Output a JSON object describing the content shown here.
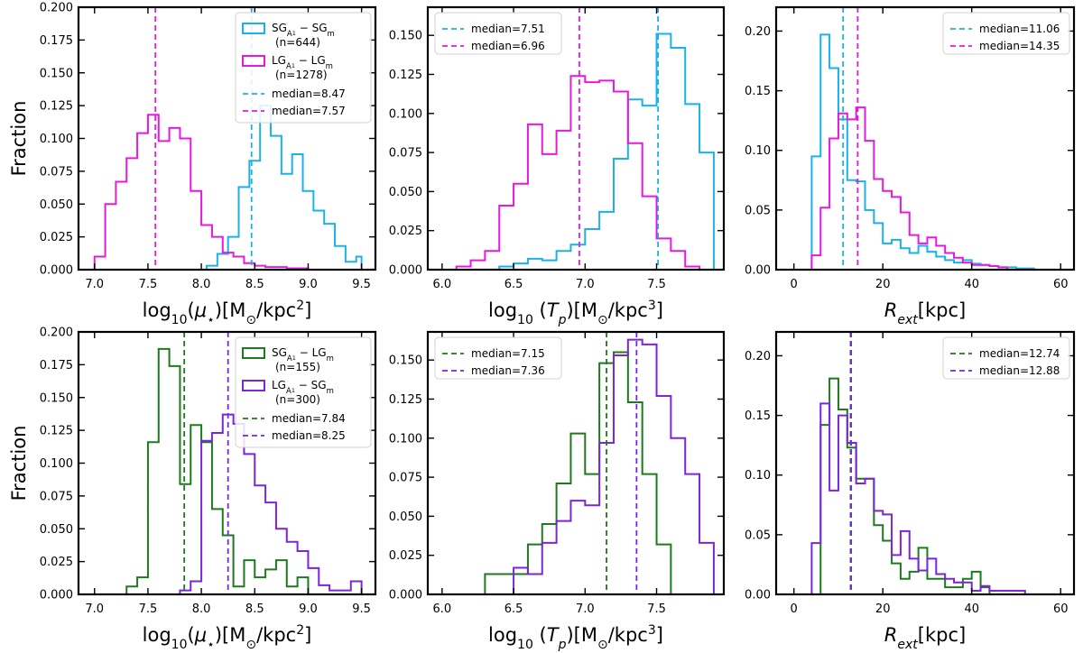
{
  "figure": {
    "ylabel_text": "Fraction",
    "xlabels": {
      "mu": {
        "base": "log",
        "sub": "10",
        "open": "(",
        "sym": "μ",
        "symsub": "⋆",
        "close": ")",
        "unit_open": "[M",
        "sun": "⊙",
        "unit_mid": "/kpc",
        "pow": "2",
        "unit_close": "]"
      },
      "tp": {
        "base": "log",
        "sub": "10",
        "mid": " (",
        "sym": "T",
        "symsub": "p",
        "close": ")",
        "unit_open": "[M",
        "sun": "⊙",
        "unit_mid": "/kpc",
        "pow": "3",
        "unit_close": "]"
      },
      "rext": {
        "sym": "R",
        "symsub": "ext",
        "unit": "[kpc]"
      }
    }
  },
  "colors": {
    "SG_SG": "#1ab2e8",
    "LG_LG": "#e619e0",
    "SG_LG": "#1e7a1e",
    "LG_SG": "#7a26d9"
  },
  "chart_data": [
    {
      "type": "histogram",
      "id": "top-mu",
      "xlabel": "mu",
      "xlim": [
        6.85,
        9.63
      ],
      "ylim": [
        0,
        0.2
      ],
      "xticks": [
        7.0,
        7.5,
        8.0,
        8.5,
        9.0,
        9.5
      ],
      "xtick_labels": [
        "7.0",
        "7.5",
        "8.0",
        "8.5",
        "9.0",
        "9.5"
      ],
      "yticks": [
        0,
        0.025,
        0.05,
        0.075,
        0.1,
        0.125,
        0.15,
        0.175,
        0.2
      ],
      "ytick_labels": [
        "0.000",
        "0.025",
        "0.050",
        "0.075",
        "0.100",
        "0.125",
        "0.150",
        "0.175",
        "0.200"
      ],
      "show_ylabel": true,
      "legend_loc": "upper right",
      "series": [
        {
          "key": "SG_SG",
          "legend_main": "SG",
          "legend_s1": "A",
          "legend_s1b": "1",
          "legend_dash": " − SG",
          "legend_s2": "m",
          "legend_n": "(n=644)",
          "edges": [
            8.05,
            8.15,
            8.25,
            8.35,
            8.45,
            8.55,
            8.65,
            8.75,
            8.85,
            8.95,
            9.05,
            9.15,
            9.25,
            9.35,
            9.45,
            9.5
          ],
          "values": [
            0.003,
            0.012,
            0.025,
            0.063,
            0.083,
            0.125,
            0.102,
            0.073,
            0.088,
            0.06,
            0.045,
            0.035,
            0.018,
            0.006,
            0.01
          ]
        },
        {
          "key": "LG_LG",
          "legend_main": "LG",
          "legend_s1": "A",
          "legend_s1b": "1",
          "legend_dash": " − LG",
          "legend_s2": "m",
          "legend_n": "(n=1278)",
          "edges": [
            7.0,
            7.1,
            7.2,
            7.3,
            7.4,
            7.5,
            7.6,
            7.7,
            7.8,
            7.9,
            8.0,
            8.1,
            8.2,
            8.3,
            8.4,
            8.5,
            8.6,
            8.7,
            8.8,
            8.9,
            9.0
          ],
          "values": [
            0.01,
            0.05,
            0.067,
            0.085,
            0.104,
            0.118,
            0.098,
            0.108,
            0.1,
            0.06,
            0.034,
            0.025,
            0.013,
            0.01,
            0.005,
            0.003,
            0.002,
            0.002,
            0.001,
            0.001
          ]
        }
      ],
      "medians": [
        {
          "key": "SG_SG",
          "value": 8.47,
          "label": "median=8.47"
        },
        {
          "key": "LG_LG",
          "value": 7.57,
          "label": "median=7.57"
        }
      ]
    },
    {
      "type": "histogram",
      "id": "top-tp",
      "xlabel": "tp",
      "xlim": [
        5.9,
        7.97
      ],
      "ylim": [
        0,
        0.168
      ],
      "xticks": [
        6.0,
        6.5,
        7.0,
        7.5
      ],
      "xtick_labels": [
        "6.0",
        "6.5",
        "7.0",
        "7.5"
      ],
      "yticks": [
        0,
        0.025,
        0.05,
        0.075,
        0.1,
        0.125,
        0.15
      ],
      "ytick_labels": [
        "0.000",
        "0.025",
        "0.050",
        "0.075",
        "0.100",
        "0.125",
        "0.150"
      ],
      "show_ylabel": false,
      "legend_loc": "upper left",
      "series": [
        {
          "key": "SG_SG",
          "edges": [
            6.4,
            6.5,
            6.6,
            6.7,
            6.8,
            6.9,
            7.0,
            7.1,
            7.2,
            7.3,
            7.4,
            7.5,
            7.6,
            7.7,
            7.8,
            7.9
          ],
          "values": [
            0.002,
            0.004,
            0.007,
            0.006,
            0.012,
            0.016,
            0.026,
            0.037,
            0.071,
            0.109,
            0.105,
            0.151,
            0.142,
            0.106,
            0.075
          ]
        },
        {
          "key": "LG_LG",
          "edges": [
            6.1,
            6.2,
            6.3,
            6.4,
            6.5,
            6.6,
            6.7,
            6.8,
            6.9,
            7.0,
            7.1,
            7.2,
            7.3,
            7.4,
            7.5,
            7.6,
            7.7,
            7.8
          ],
          "values": [
            0.002,
            0.006,
            0.012,
            0.041,
            0.055,
            0.093,
            0.074,
            0.089,
            0.124,
            0.12,
            0.121,
            0.114,
            0.081,
            0.047,
            0.02,
            0.012,
            0.002
          ]
        }
      ],
      "medians": [
        {
          "key": "SG_SG",
          "value": 7.51,
          "label": "median=7.51"
        },
        {
          "key": "LG_LG",
          "value": 6.96,
          "label": "median=6.96"
        }
      ]
    },
    {
      "type": "histogram",
      "id": "top-rext",
      "xlabel": "rext",
      "xlim": [
        -4,
        63
      ],
      "ylim": [
        0,
        0.22
      ],
      "xticks": [
        0,
        20,
        40,
        60
      ],
      "xtick_labels": [
        "0",
        "20",
        "40",
        "60"
      ],
      "yticks": [
        0,
        0.05,
        0.1,
        0.15,
        0.2
      ],
      "ytick_labels": [
        "0.00",
        "0.05",
        "0.10",
        "0.15",
        "0.20"
      ],
      "show_ylabel": false,
      "legend_loc": "upper right",
      "series": [
        {
          "key": "SG_SG",
          "edges": [
            4,
            6,
            8,
            10,
            12,
            14,
            16,
            18,
            20,
            22,
            24,
            26,
            28,
            30,
            32,
            34,
            36,
            38,
            40,
            42,
            44,
            46,
            48,
            50,
            54
          ],
          "values": [
            0.095,
            0.197,
            0.169,
            0.126,
            0.075,
            0.074,
            0.05,
            0.039,
            0.022,
            0.025,
            0.018,
            0.014,
            0.02,
            0.015,
            0.011,
            0.008,
            0.006,
            0.008,
            0.005,
            0.004,
            0.003,
            0.002,
            0.002,
            0.001
          ]
        },
        {
          "key": "LG_LG",
          "edges": [
            4,
            6,
            8,
            10,
            12,
            14,
            16,
            18,
            20,
            22,
            24,
            26,
            28,
            30,
            32,
            34,
            36,
            38,
            40,
            42,
            44,
            46,
            48
          ],
          "values": [
            0.012,
            0.052,
            0.11,
            0.131,
            0.126,
            0.136,
            0.108,
            0.076,
            0.066,
            0.061,
            0.048,
            0.029,
            0.022,
            0.027,
            0.02,
            0.014,
            0.01,
            0.006,
            0.004,
            0.004,
            0.003,
            0.002
          ]
        }
      ],
      "medians": [
        {
          "key": "SG_SG",
          "value": 11.06,
          "label": "median=11.06"
        },
        {
          "key": "LG_LG",
          "value": 14.35,
          "label": "median=14.35"
        }
      ]
    },
    {
      "type": "histogram",
      "id": "bottom-mu",
      "xlabel": "mu",
      "xlim": [
        6.85,
        9.63
      ],
      "ylim": [
        0,
        0.2
      ],
      "xticks": [
        7.0,
        7.5,
        8.0,
        8.5,
        9.0,
        9.5
      ],
      "xtick_labels": [
        "7.0",
        "7.5",
        "8.0",
        "8.5",
        "9.0",
        "9.5"
      ],
      "yticks": [
        0,
        0.025,
        0.05,
        0.075,
        0.1,
        0.125,
        0.15,
        0.175,
        0.2
      ],
      "ytick_labels": [
        "0.000",
        "0.025",
        "0.050",
        "0.075",
        "0.100",
        "0.125",
        "0.150",
        "0.175",
        "0.200"
      ],
      "show_ylabel": true,
      "legend_loc": "upper right",
      "series": [
        {
          "key": "SG_LG",
          "legend_main": "SG",
          "legend_s1": "A",
          "legend_s1b": "1",
          "legend_dash": " − LG",
          "legend_s2": "m",
          "legend_n": "(n=155)",
          "edges": [
            7.3,
            7.4,
            7.5,
            7.6,
            7.7,
            7.8,
            7.9,
            8.0,
            8.1,
            8.2,
            8.3,
            8.4,
            8.5,
            8.6,
            8.7,
            8.8,
            8.9,
            9.0
          ],
          "values": [
            0.006,
            0.013,
            0.116,
            0.187,
            0.174,
            0.084,
            0.129,
            0.116,
            0.065,
            0.045,
            0.006,
            0.026,
            0.013,
            0.019,
            0.026,
            0.006,
            0.013
          ]
        },
        {
          "key": "LG_SG",
          "legend_main": "LG",
          "legend_s1": "A",
          "legend_s1b": "1",
          "legend_dash": " − SG",
          "legend_s2": "m",
          "legend_n": "(n=300)",
          "edges": [
            7.8,
            7.9,
            8.0,
            8.1,
            8.2,
            8.3,
            8.4,
            8.5,
            8.6,
            8.7,
            8.8,
            8.9,
            9.0,
            9.1,
            9.2,
            9.3,
            9.4,
            9.5
          ],
          "values": [
            0.003,
            0.01,
            0.117,
            0.123,
            0.137,
            0.13,
            0.107,
            0.083,
            0.07,
            0.05,
            0.04,
            0.033,
            0.02,
            0.007,
            0.003,
            0.003,
            0.01
          ]
        }
      ],
      "medians": [
        {
          "key": "SG_LG",
          "value": 7.84,
          "label": "median=7.84"
        },
        {
          "key": "LG_SG",
          "value": 8.25,
          "label": "median=8.25"
        }
      ]
    },
    {
      "type": "histogram",
      "id": "bottom-tp",
      "xlabel": "tp",
      "xlim": [
        5.9,
        7.97
      ],
      "ylim": [
        0,
        0.168
      ],
      "xticks": [
        6.0,
        6.5,
        7.0,
        7.5
      ],
      "xtick_labels": [
        "6.0",
        "6.5",
        "7.0",
        "7.5"
      ],
      "yticks": [
        0,
        0.025,
        0.05,
        0.075,
        0.1,
        0.125,
        0.15
      ],
      "ytick_labels": [
        "0.000",
        "0.025",
        "0.050",
        "0.075",
        "0.100",
        "0.125",
        "0.150"
      ],
      "show_ylabel": false,
      "legend_loc": "upper left",
      "series": [
        {
          "key": "SG_LG",
          "edges": [
            6.3,
            6.4,
            6.5,
            6.6,
            6.7,
            6.8,
            6.9,
            7.0,
            7.1,
            7.2,
            7.3,
            7.4,
            7.5,
            7.6
          ],
          "values": [
            0.013,
            0.013,
            0.013,
            0.032,
            0.045,
            0.071,
            0.103,
            0.077,
            0.148,
            0.155,
            0.123,
            0.077,
            0.032
          ]
        },
        {
          "key": "LG_SG",
          "edges": [
            6.5,
            6.6,
            6.7,
            6.8,
            6.9,
            7.0,
            7.1,
            7.2,
            7.3,
            7.4,
            7.5,
            7.6,
            7.7,
            7.8,
            7.9
          ],
          "values": [
            0.017,
            0.013,
            0.033,
            0.047,
            0.06,
            0.057,
            0.097,
            0.153,
            0.163,
            0.16,
            0.127,
            0.1,
            0.077,
            0.033
          ]
        }
      ],
      "medians": [
        {
          "key": "SG_LG",
          "value": 7.15,
          "label": "median=7.15"
        },
        {
          "key": "LG_SG",
          "value": 7.36,
          "label": "median=7.36"
        }
      ]
    },
    {
      "type": "histogram",
      "id": "bottom-rext",
      "xlabel": "rext",
      "xlim": [
        -4,
        63
      ],
      "ylim": [
        0,
        0.22
      ],
      "xticks": [
        0,
        20,
        40,
        60
      ],
      "xtick_labels": [
        "0",
        "20",
        "40",
        "60"
      ],
      "yticks": [
        0,
        0.05,
        0.1,
        0.15,
        0.2
      ],
      "ytick_labels": [
        "0.00",
        "0.05",
        "0.10",
        "0.15",
        "0.20"
      ],
      "show_ylabel": false,
      "legend_loc": "upper right",
      "series": [
        {
          "key": "SG_LG",
          "edges": [
            6,
            8,
            10,
            12,
            14,
            16,
            18,
            20,
            22,
            24,
            26,
            28,
            30,
            32,
            34,
            36,
            38,
            40,
            42,
            44
          ],
          "values": [
            0.142,
            0.181,
            0.155,
            0.123,
            0.097,
            0.097,
            0.058,
            0.045,
            0.026,
            0.013,
            0.019,
            0.039,
            0.013,
            0.013,
            0.006,
            0.006,
            0.013,
            0.019,
            0.006
          ]
        },
        {
          "key": "LG_SG",
          "edges": [
            4,
            6,
            8,
            10,
            12,
            14,
            16,
            18,
            20,
            22,
            24,
            26,
            28,
            30,
            32,
            34,
            36,
            38,
            40,
            42,
            44,
            46,
            48,
            50,
            52
          ],
          "values": [
            0.043,
            0.16,
            0.087,
            0.15,
            0.127,
            0.093,
            0.097,
            0.07,
            0.067,
            0.033,
            0.053,
            0.03,
            0.02,
            0.03,
            0.017,
            0.013,
            0.01,
            0.01,
            0.003,
            0.007,
            0.003,
            0.003,
            0.003,
            0.003
          ]
        }
      ],
      "medians": [
        {
          "key": "SG_LG",
          "value": 12.74,
          "label": "median=12.74"
        },
        {
          "key": "LG_SG",
          "value": 12.88,
          "label": "median=12.88"
        }
      ]
    }
  ]
}
